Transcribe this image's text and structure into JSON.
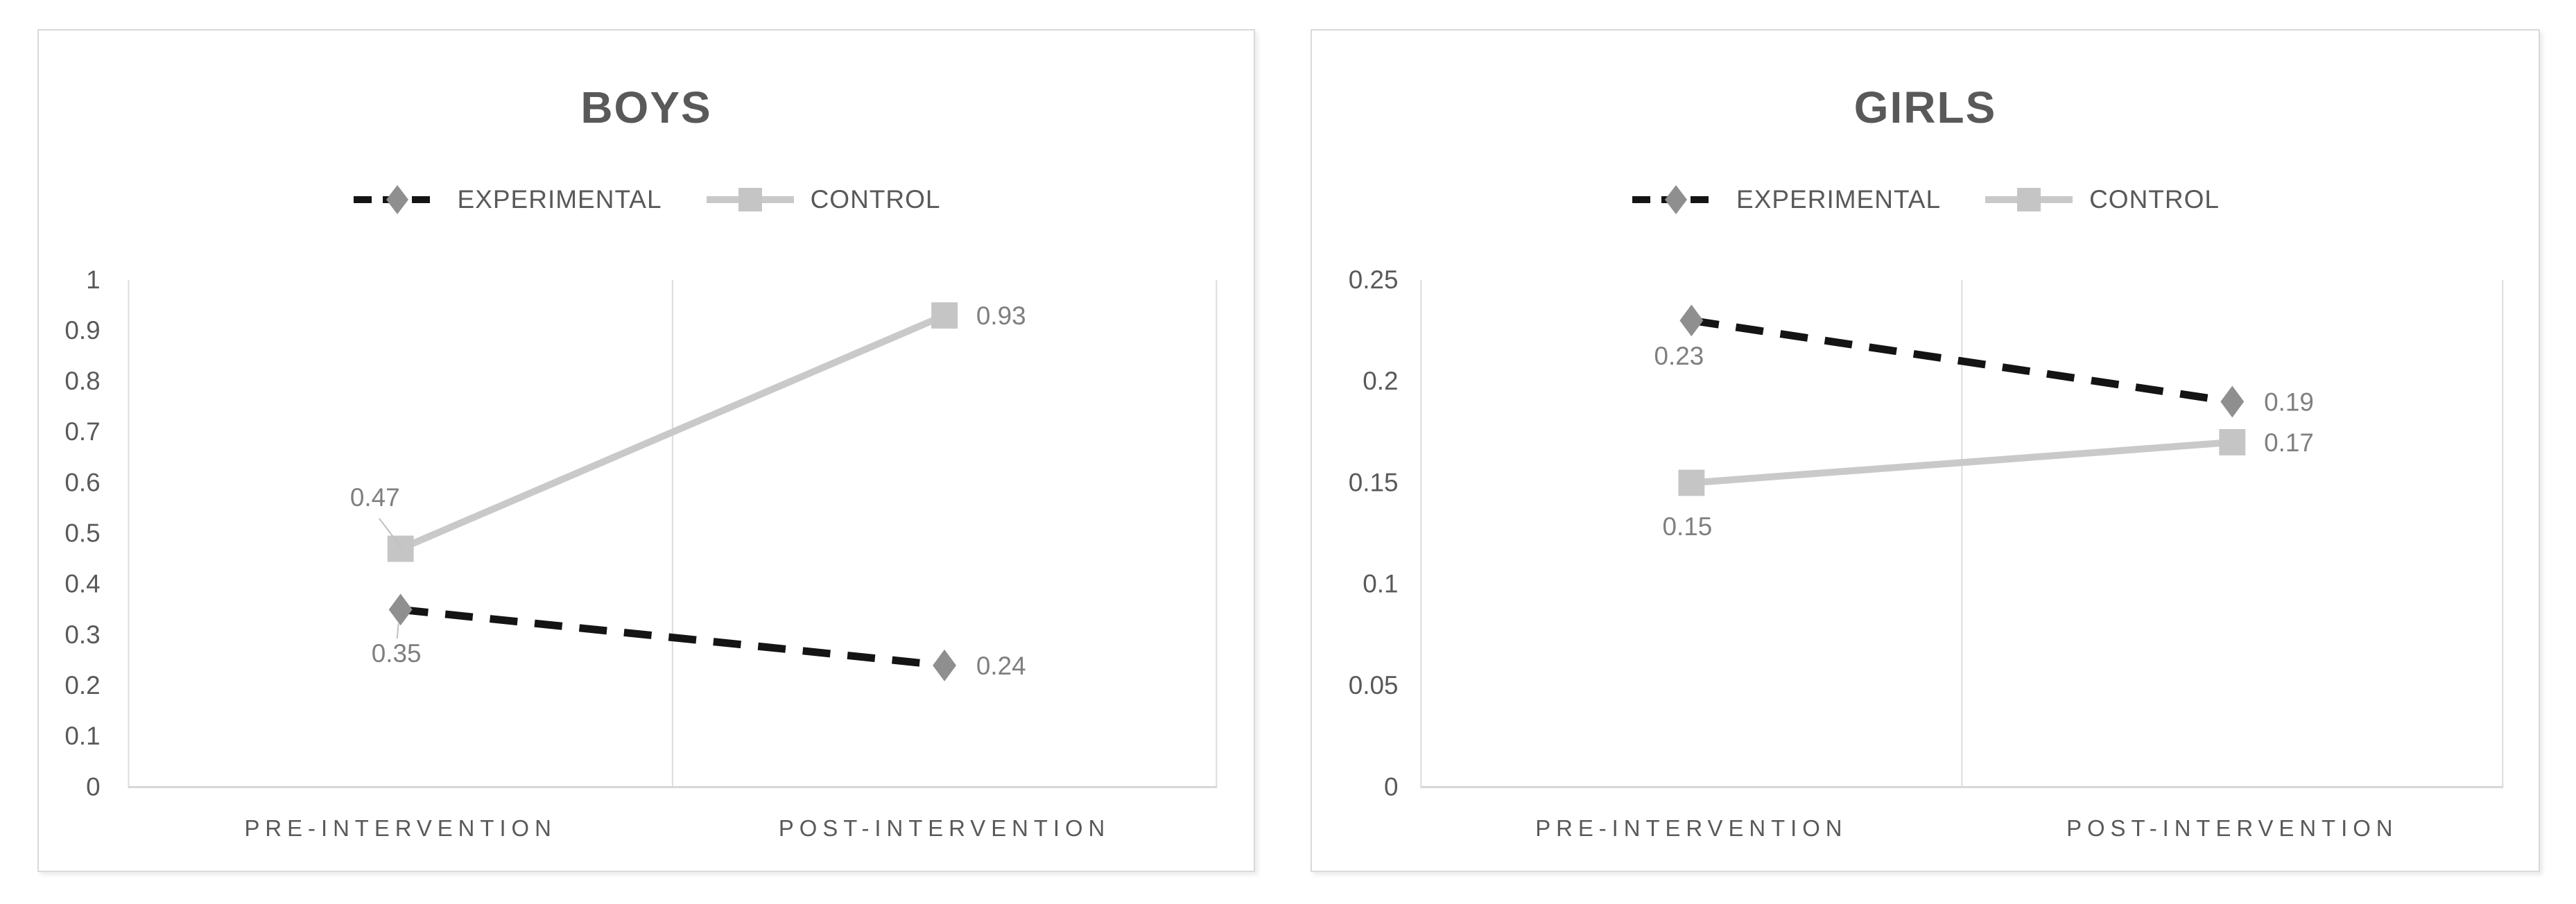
{
  "palette": {
    "panel_border": "#d9d9d9",
    "title_text": "#595959",
    "legend_text": "#595959",
    "axis_text": "#595959",
    "data_label_text": "#7f7f7f",
    "gridline": "#dcdcdc",
    "axis_line": "#d6d6d6"
  },
  "chart_data": [
    {
      "type": "line",
      "title": "BOYS",
      "categories": [
        "PRE-INTERVENTION",
        "POST-INTERVENTION"
      ],
      "ylim": [
        0,
        1
      ],
      "yticks": [
        "0",
        "0.1",
        "0.2",
        "0.3",
        "0.4",
        "0.5",
        "0.6",
        "0.7",
        "0.8",
        "0.9",
        "1"
      ],
      "grid": "vertical-category-boundaries-only",
      "legend_position": "top",
      "series": [
        {
          "name": "EXPERIMENTAL",
          "style": "dashed",
          "color": "#141414",
          "marker": "diamond",
          "marker_color": "#8f8f8f",
          "values": [
            0.35,
            0.24
          ],
          "point_labels": [
            {
              "text": "0.35",
              "placement": "below",
              "leader": true
            },
            {
              "text": "0.24",
              "placement": "right",
              "leader": false
            }
          ]
        },
        {
          "name": "CONTROL",
          "style": "solid",
          "color": "#c9c9c9",
          "marker": "square",
          "marker_color": "#c5c5c5",
          "values": [
            0.47,
            0.93
          ],
          "point_labels": [
            {
              "text": "0.47",
              "placement": "above-left",
              "leader": true
            },
            {
              "text": "0.93",
              "placement": "right",
              "leader": false
            }
          ]
        }
      ]
    },
    {
      "type": "line",
      "title": "GIRLS",
      "categories": [
        "PRE-INTERVENTION",
        "POST-INTERVENTION"
      ],
      "ylim": [
        0,
        0.25
      ],
      "yticks": [
        "0",
        "0.05",
        "0.1",
        "0.15",
        "0.2",
        "0.25"
      ],
      "grid": "vertical-category-boundaries-only",
      "legend_position": "top",
      "series": [
        {
          "name": "EXPERIMENTAL",
          "style": "dashed",
          "color": "#141414",
          "marker": "diamond",
          "marker_color": "#8f8f8f",
          "values": [
            0.23,
            0.19
          ],
          "point_labels": [
            {
              "text": "0.23",
              "placement": "below-left",
              "leader": false
            },
            {
              "text": "0.19",
              "placement": "right",
              "leader": false
            }
          ]
        },
        {
          "name": "CONTROL",
          "style": "solid",
          "color": "#c9c9c9",
          "marker": "square",
          "marker_color": "#c5c5c5",
          "values": [
            0.15,
            0.17
          ],
          "point_labels": [
            {
              "text": "0.15",
              "placement": "below",
              "leader": false
            },
            {
              "text": "0.17",
              "placement": "right",
              "leader": false
            }
          ]
        }
      ]
    }
  ]
}
